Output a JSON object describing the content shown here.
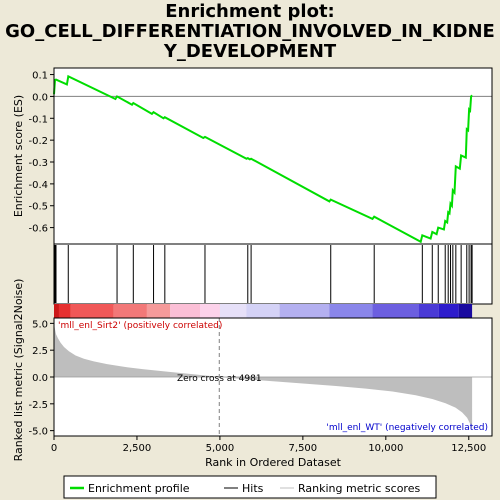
{
  "title_lines": [
    "Enrichment plot:",
    "GO_CELL_DIFFERENTIATION_INVOLVED_IN_KIDNE",
    "Y_DEVELOPMENT"
  ],
  "colors": {
    "background": "#ede9d8",
    "es_line": "#00dd00",
    "hit_line": "#000000",
    "zero_line": "#808080",
    "metric_fill": "#bebebe",
    "pos_label": "#cc0000",
    "neg_label": "#0000cc"
  },
  "chart_data": [
    {
      "type": "line",
      "name": "enrichment-profile",
      "ylabel": "Enrichment score (ES)",
      "ylim": [
        -0.675,
        0.13
      ],
      "xlim": [
        0,
        13200
      ],
      "yticks": [
        0.1,
        0.0,
        -0.1,
        -0.2,
        -0.3,
        -0.4,
        -0.5,
        -0.6
      ],
      "ytick_labels": [
        "0.1",
        "0.0",
        "-0.1",
        "-0.2",
        "-0.3",
        "-0.4",
        "-0.5",
        "-0.6"
      ],
      "x": [
        0,
        30,
        60,
        390,
        430,
        1850,
        1900,
        2350,
        2390,
        2950,
        3000,
        3300,
        3340,
        4500,
        4550,
        5800,
        5840,
        5900,
        5940,
        8300,
        8340,
        9600,
        9650,
        11050,
        11100,
        11350,
        11400,
        11530,
        11580,
        11750,
        11790,
        11850,
        11880,
        11920,
        11950,
        11990,
        12020,
        12070,
        12110,
        12230,
        12270,
        12410,
        12440,
        12480,
        12510,
        12540,
        12570,
        12600
      ],
      "y": [
        0.01,
        0.075,
        0.077,
        0.055,
        0.092,
        -0.012,
        0.0,
        -0.038,
        -0.03,
        -0.08,
        -0.072,
        -0.1,
        -0.095,
        -0.19,
        -0.185,
        -0.285,
        -0.282,
        -0.288,
        -0.285,
        -0.48,
        -0.472,
        -0.56,
        -0.55,
        -0.665,
        -0.635,
        -0.65,
        -0.62,
        -0.63,
        -0.6,
        -0.608,
        -0.57,
        -0.576,
        -0.53,
        -0.535,
        -0.49,
        -0.5,
        -0.43,
        -0.44,
        -0.32,
        -0.33,
        -0.27,
        -0.28,
        -0.15,
        -0.155,
        -0.06,
        -0.065,
        0.0,
        0.005
      ],
      "hits": [
        30,
        60,
        430,
        1900,
        2390,
        3000,
        3340,
        4550,
        5840,
        5940,
        8340,
        9650,
        11100,
        11400,
        11580,
        11790,
        11880,
        11950,
        12020,
        12110,
        12270,
        12440,
        12510,
        12570,
        12600
      ]
    },
    {
      "type": "area",
      "name": "ranking-metric",
      "ylabel": "Ranked list metric (Signal2Noise)",
      "xlabel": "Rank in Ordered Dataset",
      "ylim": [
        -5.5,
        5.5
      ],
      "xlim": [
        0,
        13200
      ],
      "yticks": [
        5.0,
        2.5,
        0.0,
        -2.5,
        -5.0
      ],
      "ytick_labels": [
        "5.0",
        "2.5",
        "0.0",
        "-2.5",
        "-5.0"
      ],
      "xticks": [
        0,
        2500,
        5000,
        7500,
        10000,
        12500
      ],
      "xtick_labels": [
        "0",
        "2,500",
        "5,000",
        "7,500",
        "10,000",
        "12,500"
      ],
      "x": [
        0,
        20,
        60,
        120,
        200,
        300,
        450,
        650,
        900,
        1200,
        1600,
        2100,
        2700,
        3400,
        4200,
        4981,
        5800,
        6700,
        7600,
        8500,
        9400,
        10200,
        10900,
        11400,
        11800,
        12100,
        12300,
        12450,
        12550,
        12600
      ],
      "values": [
        5.1,
        4.6,
        4.0,
        3.6,
        3.2,
        2.8,
        2.4,
        2.0,
        1.7,
        1.45,
        1.2,
        0.95,
        0.72,
        0.5,
        0.26,
        0.0,
        -0.22,
        -0.42,
        -0.62,
        -0.84,
        -1.08,
        -1.35,
        -1.7,
        -2.05,
        -2.45,
        -2.85,
        -3.3,
        -3.8,
        -4.4,
        -5.0
      ],
      "zero_cross_rank": 4981,
      "annotations": {
        "zero_cross": "Zero cross at 4981",
        "positive": "'mll_enl_Sirt2' (positively correlated)",
        "negative": "'mll_enl_WT' (negatively correlated)"
      }
    }
  ],
  "colorbar": {
    "stops": [
      {
        "from": 0,
        "to": 150,
        "color": "#cc1818"
      },
      {
        "from": 150,
        "to": 500,
        "color": "#e63030"
      },
      {
        "from": 500,
        "to": 1800,
        "color": "#f05858"
      },
      {
        "from": 1800,
        "to": 2800,
        "color": "#f27878"
      },
      {
        "from": 2800,
        "to": 3500,
        "color": "#f59a9a"
      },
      {
        "from": 3500,
        "to": 4400,
        "color": "#fbbfd6"
      },
      {
        "from": 4400,
        "to": 5000,
        "color": "#fcd2ea"
      },
      {
        "from": 5000,
        "to": 5800,
        "color": "#e6e0f8"
      },
      {
        "from": 5800,
        "to": 6800,
        "color": "#d4d2f6"
      },
      {
        "from": 6800,
        "to": 8300,
        "color": "#b4b0f0"
      },
      {
        "from": 8300,
        "to": 9600,
        "color": "#8a86ea"
      },
      {
        "from": 9600,
        "to": 11000,
        "color": "#6c5fe0"
      },
      {
        "from": 11000,
        "to": 11600,
        "color": "#4a3ad6"
      },
      {
        "from": 11600,
        "to": 12200,
        "color": "#2e1ccc"
      },
      {
        "from": 12200,
        "to": 12600,
        "color": "#1a0aa0"
      }
    ]
  },
  "legend": {
    "items": [
      {
        "label": "Enrichment profile",
        "color": "#00dd00",
        "kind": "line-thick"
      },
      {
        "label": "Hits",
        "color": "#000000",
        "kind": "line"
      },
      {
        "label": "Ranking metric scores",
        "color": "#c0c0c0",
        "kind": "line"
      }
    ]
  }
}
